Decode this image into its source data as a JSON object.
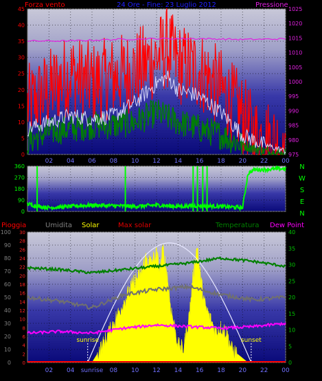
{
  "chart_data": [
    {
      "type": "line",
      "title": "24 Ore - Fine: 23 Luglio 2012",
      "left_axis_label": "Forza vento",
      "right_axis_label": "Pressione",
      "x_ticks": [
        "02",
        "04",
        "06",
        "08",
        "10",
        "12",
        "14",
        "16",
        "18",
        "20",
        "22",
        "00"
      ],
      "left_ticks": [
        0,
        5,
        10,
        15,
        20,
        25,
        30,
        35,
        40,
        45
      ],
      "right_ticks": [
        975,
        980,
        985,
        990,
        995,
        1000,
        1005,
        1010,
        1015,
        1020,
        1025
      ],
      "ylim_left": [
        0,
        45
      ],
      "ylim_right": [
        975,
        1025
      ],
      "series": [
        {
          "name": "Forza vento",
          "axis": "left",
          "color": "#ff0000",
          "hours": [
            0,
            2,
            4,
            6,
            8,
            10,
            12,
            13,
            14,
            16,
            18,
            20,
            21,
            22,
            23,
            24
          ],
          "values": [
            15,
            20,
            25,
            22,
            24,
            26,
            30,
            33,
            28,
            26,
            20,
            12,
            6,
            5,
            4,
            2
          ]
        },
        {
          "name": "Pressione",
          "axis": "right",
          "color": "#e020e0",
          "hours": [
            0,
            4,
            8,
            12,
            16,
            20,
            24
          ],
          "values": [
            1014,
            1014,
            1014.5,
            1014.8,
            1014.8,
            1014.5,
            1014.7
          ]
        }
      ],
      "unlabeled_series": [
        {
          "axis": "left",
          "color": "#d8d8f8",
          "hours": [
            0,
            2,
            4,
            6,
            8,
            10,
            12,
            13,
            14,
            16,
            18,
            20,
            22,
            24
          ],
          "values": [
            8,
            10,
            12,
            11,
            12,
            16,
            22,
            24,
            20,
            18,
            13,
            6,
            3,
            1
          ]
        },
        {
          "axis": "left",
          "color": "#008000",
          "hours": [
            0,
            2,
            4,
            6,
            8,
            10,
            12,
            14,
            16,
            18,
            20,
            22,
            24
          ],
          "values": [
            4,
            7,
            8,
            9,
            9,
            10,
            13,
            10,
            8,
            6,
            3,
            1,
            0
          ]
        }
      ]
    },
    {
      "type": "line",
      "left_ticks": [
        0,
        90,
        180,
        270,
        360
      ],
      "right_labels": [
        "N",
        "W",
        "S",
        "E",
        "N"
      ],
      "ylim": [
        0,
        360
      ],
      "series": [
        {
          "color": "#00ff00",
          "hours": [
            0,
            1,
            2,
            4,
            6,
            8,
            10,
            12,
            14,
            16,
            18,
            20,
            20.5,
            21,
            24
          ],
          "values": [
            60,
            40,
            30,
            40,
            50,
            45,
            40,
            50,
            40,
            45,
            40,
            30,
            300,
            330,
            340
          ]
        }
      ]
    },
    {
      "type": "area",
      "legend": [
        {
          "label": "Pioggia",
          "color": "#ff0000"
        },
        {
          "label": "Umidita",
          "color": "#808080"
        },
        {
          "label": "Solar",
          "color": "#ffff00"
        },
        {
          "label": "Max solar",
          "color": "#e00000"
        },
        {
          "label": "Temperatura",
          "color": "#008000"
        },
        {
          "label": "Dew Point",
          "color": "#ff00ff"
        }
      ],
      "left_ticks_outer": [
        0,
        10,
        20,
        30,
        40,
        50,
        60,
        70,
        80,
        90,
        100
      ],
      "left_ticks_inner": [
        0,
        2,
        4,
        6,
        8,
        10,
        12,
        14,
        16,
        18,
        20,
        22,
        24,
        26,
        28,
        30
      ],
      "right_ticks": [
        0,
        5,
        10,
        15,
        20,
        25,
        30,
        35,
        40
      ],
      "x_ticks": [
        "02",
        "04",
        "sunrise",
        "08",
        "10",
        "12",
        "14",
        "16",
        "18",
        "20",
        "22",
        "00"
      ],
      "annotations": [
        "sunrise",
        "sunset"
      ],
      "sunrise_hour": 5.6,
      "sunset_hour": 20.8,
      "series": [
        {
          "name": "Solar",
          "unit": "solar scale (max 30)",
          "hours": [
            6,
            7,
            8,
            9,
            10,
            10.5,
            11,
            11.5,
            12,
            12.3,
            12.6,
            13,
            13.3,
            13.6,
            14,
            14.5,
            15,
            15.5,
            15.8,
            16,
            16.5,
            17,
            17.5,
            18,
            18.5,
            19,
            19.5,
            20,
            20.5
          ],
          "values": [
            0,
            4,
            9,
            14,
            19,
            20,
            24,
            23,
            25,
            21,
            26,
            20,
            13,
            9,
            4,
            3,
            10,
            22,
            27,
            21,
            13,
            10,
            7,
            8,
            7,
            3,
            2,
            1,
            0
          ]
        },
        {
          "name": "Max solar",
          "unit": "solar scale (max 30)",
          "hours": [
            5.6,
            8,
            10,
            12,
            13.5,
            15,
            17,
            19,
            20.8
          ],
          "values": [
            0,
            9.5,
            19,
            25,
            27.5,
            26,
            19,
            10,
            0
          ]
        },
        {
          "name": "Temperatura",
          "unit": "°C",
          "hours": [
            0,
            3,
            6,
            9,
            12,
            15,
            18,
            21,
            24
          ],
          "values": [
            29,
            28.5,
            27.5,
            28.5,
            29.5,
            30.5,
            32,
            31,
            29.5
          ]
        },
        {
          "name": "Umidita",
          "unit": "%",
          "hours": [
            0,
            3,
            6,
            9,
            12,
            15,
            18,
            21,
            24
          ],
          "values": [
            50,
            47,
            42,
            52,
            56,
            58,
            52,
            48,
            50
          ]
        },
        {
          "name": "Dew Point",
          "unit": "°C",
          "hours": [
            0,
            3,
            6,
            9,
            12,
            15,
            18,
            21,
            24
          ],
          "values": [
            9,
            9.5,
            9,
            10.5,
            11.5,
            11,
            10.5,
            11,
            12
          ]
        },
        {
          "name": "Pioggia",
          "unit": "mm",
          "hours": [
            0,
            24
          ],
          "values": [
            0,
            0
          ]
        }
      ]
    }
  ]
}
